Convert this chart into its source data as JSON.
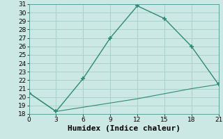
{
  "xlabel": "Humidex (Indice chaleur)",
  "line1_x": [
    0,
    3,
    6,
    9,
    12,
    15,
    18,
    21
  ],
  "line1_y": [
    20.5,
    18.3,
    22.2,
    27.0,
    30.8,
    29.3,
    26.0,
    21.5
  ],
  "line2_x": [
    0,
    3,
    6,
    9,
    12,
    15,
    18,
    21
  ],
  "line2_y": [
    20.5,
    18.3,
    18.8,
    19.3,
    19.8,
    20.4,
    21.0,
    21.5
  ],
  "line_color": "#2e8b73",
  "bg_color": "#cce8e4",
  "grid_color": "#aacfcc",
  "xlim": [
    0,
    21
  ],
  "ylim": [
    18,
    31
  ],
  "xticks": [
    0,
    3,
    6,
    9,
    12,
    15,
    18,
    21
  ],
  "yticks": [
    18,
    19,
    20,
    21,
    22,
    23,
    24,
    25,
    26,
    27,
    28,
    29,
    30,
    31
  ],
  "tick_fontsize": 6.5,
  "xlabel_fontsize": 8
}
